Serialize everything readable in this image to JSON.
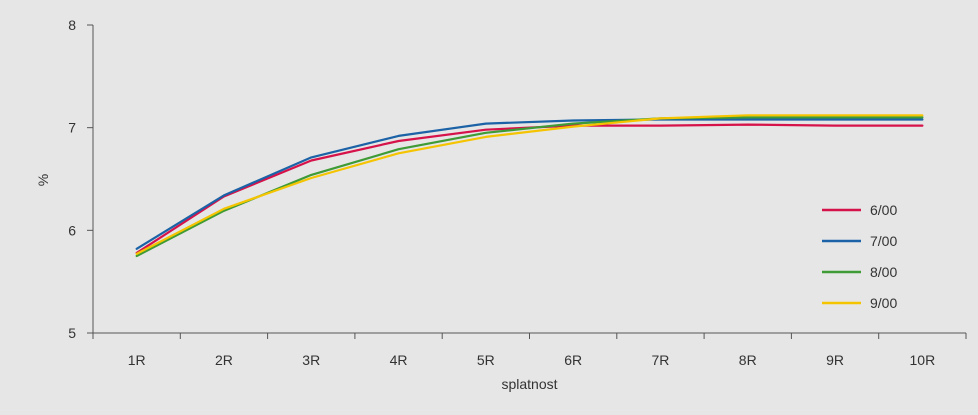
{
  "chart_data": {
    "type": "line",
    "title": "",
    "xlabel": "splatnost",
    "ylabel": "%",
    "categories": [
      "1R",
      "2R",
      "3R",
      "4R",
      "5R",
      "6R",
      "7R",
      "8R",
      "9R",
      "10R"
    ],
    "ylim": [
      5,
      8
    ],
    "yticks": [
      "5",
      "6",
      "7",
      "8"
    ],
    "grid": false,
    "legend_position": "right",
    "series": [
      {
        "name": "6/00",
        "color": "#d6124a",
        "values": [
          5.78,
          6.33,
          6.68,
          6.87,
          6.98,
          7.02,
          7.02,
          7.03,
          7.02,
          7.02
        ]
      },
      {
        "name": "7/00",
        "color": "#1b62a6",
        "values": [
          5.82,
          6.34,
          6.71,
          6.92,
          7.04,
          7.07,
          7.08,
          7.08,
          7.08,
          7.08
        ]
      },
      {
        "name": "8/00",
        "color": "#3e9b35",
        "values": [
          5.75,
          6.19,
          6.54,
          6.79,
          6.95,
          7.04,
          7.09,
          7.1,
          7.1,
          7.1
        ]
      },
      {
        "name": "9/00",
        "color": "#f5c400",
        "values": [
          5.77,
          6.21,
          6.51,
          6.75,
          6.91,
          7.01,
          7.09,
          7.12,
          7.12,
          7.12
        ]
      }
    ]
  }
}
